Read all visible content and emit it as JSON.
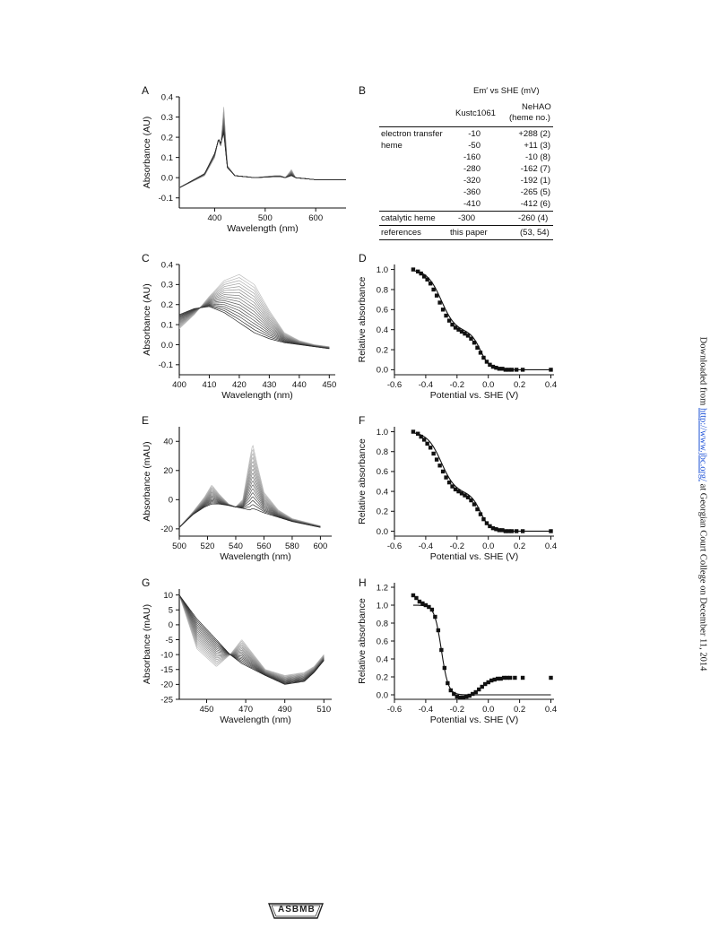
{
  "panels": {
    "A": {
      "letter": "A",
      "xlabel": "Wavelength (nm)",
      "ylabel": "Absorbance (AU)",
      "xticks": [
        "400",
        "500",
        "600"
      ],
      "yticks": [
        "0.4",
        "0.3",
        "0.2",
        "0.1",
        "0.0",
        "-0.1"
      ]
    },
    "C": {
      "letter": "C",
      "xlabel": "Wavelength (nm)",
      "ylabel": "Absorbance (AU)",
      "xticks": [
        "400",
        "410",
        "420",
        "430",
        "440",
        "450"
      ],
      "yticks": [
        "0.4",
        "0.3",
        "0.2",
        "0.1",
        "0.0",
        "-0.1"
      ]
    },
    "D": {
      "letter": "D",
      "xlabel": "Potential vs. SHE (V)",
      "ylabel": "Relative absorbance",
      "xticks": [
        "-0.6",
        "-0.4",
        "-0.2",
        "0.0",
        "0.2",
        "0.4"
      ],
      "yticks": [
        "1.0",
        "0.8",
        "0.6",
        "0.4",
        "0.2",
        "0.0"
      ]
    },
    "E": {
      "letter": "E",
      "xlabel": "Wavelength (nm)",
      "ylabel": "Absorbance (mAU)",
      "xticks": [
        "500",
        "520",
        "540",
        "560",
        "580",
        "600"
      ],
      "yticks": [
        "40",
        "20",
        "0",
        "-20"
      ]
    },
    "F": {
      "letter": "F",
      "xlabel": "Potential vs. SHE (V)",
      "ylabel": "Relative absorbance",
      "xticks": [
        "-0.6",
        "-0.4",
        "-0.2",
        "0.0",
        "0.2",
        "0.4"
      ],
      "yticks": [
        "1.0",
        "0.8",
        "0.6",
        "0.4",
        "0.2",
        "0.0"
      ]
    },
    "G": {
      "letter": "G",
      "xlabel": "Wavelength (nm)",
      "ylabel": "Absorbance (mAU)",
      "xticks": [
        "450",
        "470",
        "490",
        "510"
      ],
      "yticks": [
        "10",
        "5",
        "0",
        "-5",
        "-10",
        "-15",
        "-20",
        "-25"
      ]
    },
    "H": {
      "letter": "H",
      "xlabel": "Potential vs. SHE (V)",
      "ylabel": "Relative absorbance",
      "xticks": [
        "-0.6",
        "-0.4",
        "-0.2",
        "0.0",
        "0.2",
        "0.4"
      ],
      "yticks": [
        "1.2",
        "1.0",
        "0.8",
        "0.6",
        "0.4",
        "0.2",
        "0.0"
      ]
    }
  },
  "table": {
    "letter": "B",
    "header": "Em′ vs SHE (mV)",
    "col1": "Kustc1061",
    "col2_line1": "NeHAO",
    "col2_line2": "(heme no.)",
    "row_et_label1": "electron transfer",
    "row_et_label2": "heme",
    "et_kustc": [
      "-10",
      "-50",
      "-160",
      "-280",
      "-320",
      "-360",
      "-410"
    ],
    "et_nehao": [
      "+288 (2)",
      "+11 (3)",
      "-10 (8)",
      "-162 (7)",
      "-192 (1)",
      "-265 (5)",
      "-412 (6)"
    ],
    "cat_label": "catalytic heme",
    "cat_kustc": "-300",
    "cat_nehao": "-260 (4)",
    "ref_label": "references",
    "ref_kustc": "this paper",
    "ref_nehao": "(53, 54)"
  },
  "sidebar": {
    "prefix": "Downloaded from ",
    "link": "http://www.jbc.org/",
    "suffix": " at Georgian Court College on December 11, 2014"
  },
  "footer": {
    "logo_text": "ASBMB"
  },
  "chart_data": [
    {
      "panel": "A",
      "type": "line",
      "xlabel": "Wavelength (nm)",
      "ylabel": "Absorbance (AU)",
      "xlim": [
        330,
        660
      ],
      "ylim": [
        -0.15,
        0.4
      ],
      "x": [
        330,
        380,
        400,
        408,
        412,
        418,
        425,
        440,
        480,
        520,
        530,
        540,
        552,
        560,
        600,
        660
      ],
      "series": [
        {
          "values": [
            -0.05,
            0.01,
            0.1,
            0.2,
            0.14,
            0.35,
            0.06,
            0.01,
            0.0,
            0.01,
            0.01,
            0.0,
            0.04,
            0.0,
            -0.01,
            -0.01
          ]
        },
        {
          "values": [
            -0.05,
            0.02,
            0.12,
            0.19,
            0.17,
            0.22,
            0.05,
            0.01,
            0.0,
            0.005,
            0.005,
            0.0,
            0.01,
            0.0,
            -0.01,
            -0.01
          ]
        }
      ]
    },
    {
      "panel": "C",
      "type": "line",
      "xlabel": "Wavelength (nm)",
      "ylabel": "Absorbance (AU)",
      "xlim": [
        400,
        452
      ],
      "ylim": [
        -0.15,
        0.4
      ],
      "x": [
        400,
        405,
        410,
        415,
        420,
        425,
        430,
        435,
        440,
        445,
        450
      ],
      "series": [
        {
          "values": [
            0.08,
            0.15,
            0.24,
            0.32,
            0.35,
            0.3,
            0.17,
            0.06,
            0.02,
            0.0,
            -0.01
          ]
        },
        {
          "values": [
            0.15,
            0.18,
            0.19,
            0.16,
            0.11,
            0.06,
            0.03,
            0.01,
            0.0,
            -0.01,
            -0.02
          ]
        }
      ]
    },
    {
      "panel": "D",
      "type": "scatter",
      "xlabel": "Potential vs. SHE (V)",
      "ylabel": "Relative absorbance",
      "xlim": [
        -0.6,
        0.42
      ],
      "ylim": [
        -0.05,
        1.05
      ],
      "x": [
        -0.48,
        -0.45,
        -0.43,
        -0.41,
        -0.39,
        -0.37,
        -0.35,
        -0.33,
        -0.31,
        -0.29,
        -0.27,
        -0.25,
        -0.23,
        -0.21,
        -0.19,
        -0.17,
        -0.15,
        -0.13,
        -0.11,
        -0.09,
        -0.07,
        -0.05,
        -0.03,
        -0.01,
        0.01,
        0.03,
        0.05,
        0.07,
        0.09,
        0.11,
        0.13,
        0.15,
        0.18,
        0.22,
        0.4
      ],
      "values": [
        1.0,
        0.98,
        0.96,
        0.93,
        0.9,
        0.86,
        0.8,
        0.74,
        0.67,
        0.6,
        0.54,
        0.49,
        0.45,
        0.42,
        0.4,
        0.38,
        0.36,
        0.34,
        0.31,
        0.27,
        0.22,
        0.17,
        0.12,
        0.08,
        0.05,
        0.03,
        0.02,
        0.01,
        0.01,
        0.0,
        0.0,
        0.0,
        0.0,
        0.0,
        0.0
      ]
    },
    {
      "panel": "E",
      "type": "line",
      "xlabel": "Wavelength (nm)",
      "ylabel": "Absorbance (mAU)",
      "xlim": [
        500,
        608
      ],
      "ylim": [
        -25,
        50
      ],
      "x": [
        500,
        510,
        518,
        523,
        528,
        535,
        540,
        545,
        550,
        552,
        555,
        560,
        570,
        580,
        600
      ],
      "series": [
        {
          "values": [
            -19,
            -8,
            2,
            10,
            4,
            -3,
            -5,
            0,
            28,
            38,
            25,
            5,
            -7,
            -13,
            -18
          ]
        },
        {
          "values": [
            -19,
            -10,
            -5,
            -3,
            -3,
            -4,
            -5,
            -6,
            -7,
            -6,
            -7,
            -9,
            -12,
            -15,
            -19
          ]
        }
      ]
    },
    {
      "panel": "F",
      "type": "scatter",
      "xlabel": "Potential vs. SHE (V)",
      "ylabel": "Relative absorbance",
      "xlim": [
        -0.6,
        0.42
      ],
      "ylim": [
        -0.05,
        1.05
      ],
      "x": [
        -0.48,
        -0.45,
        -0.43,
        -0.41,
        -0.39,
        -0.37,
        -0.35,
        -0.33,
        -0.31,
        -0.29,
        -0.27,
        -0.25,
        -0.23,
        -0.21,
        -0.19,
        -0.17,
        -0.15,
        -0.13,
        -0.11,
        -0.09,
        -0.07,
        -0.05,
        -0.03,
        -0.01,
        0.01,
        0.03,
        0.05,
        0.07,
        0.09,
        0.11,
        0.13,
        0.15,
        0.18,
        0.22,
        0.4
      ],
      "values": [
        1.0,
        0.98,
        0.95,
        0.92,
        0.88,
        0.84,
        0.78,
        0.72,
        0.66,
        0.6,
        0.54,
        0.49,
        0.45,
        0.42,
        0.4,
        0.38,
        0.36,
        0.34,
        0.31,
        0.27,
        0.22,
        0.17,
        0.12,
        0.08,
        0.05,
        0.03,
        0.02,
        0.01,
        0.01,
        0.0,
        0.0,
        0.0,
        0.0,
        0.0,
        0.0
      ]
    },
    {
      "panel": "G",
      "type": "line",
      "xlabel": "Wavelength (nm)",
      "ylabel": "Absorbance (mAU)",
      "xlim": [
        436,
        514
      ],
      "ylim": [
        -25,
        12
      ],
      "x": [
        436,
        445,
        455,
        462,
        468,
        474,
        480,
        490,
        500,
        505,
        510
      ],
      "series": [
        {
          "values": [
            10,
            -8,
            -14,
            -10,
            -5,
            -10,
            -15,
            -17,
            -16,
            -14,
            -10
          ]
        },
        {
          "values": [
            10,
            2,
            -5,
            -10,
            -13,
            -15,
            -17,
            -20,
            -19,
            -16,
            -12
          ]
        }
      ]
    },
    {
      "panel": "H",
      "type": "scatter",
      "xlabel": "Potential vs. SHE (V)",
      "ylabel": "Relative absorbance",
      "xlim": [
        -0.6,
        0.42
      ],
      "ylim": [
        -0.05,
        1.25
      ],
      "x": [
        -0.48,
        -0.46,
        -0.44,
        -0.42,
        -0.4,
        -0.38,
        -0.36,
        -0.34,
        -0.32,
        -0.3,
        -0.28,
        -0.26,
        -0.24,
        -0.22,
        -0.2,
        -0.18,
        -0.16,
        -0.14,
        -0.12,
        -0.1,
        -0.08,
        -0.06,
        -0.04,
        -0.02,
        0.0,
        0.02,
        0.04,
        0.06,
        0.08,
        0.1,
        0.12,
        0.14,
        0.17,
        0.22,
        0.4
      ],
      "values": [
        1.11,
        1.08,
        1.04,
        1.02,
        1.0,
        0.98,
        0.95,
        0.87,
        0.72,
        0.5,
        0.3,
        0.13,
        0.05,
        0.01,
        -0.02,
        -0.03,
        -0.03,
        -0.02,
        -0.01,
        0.01,
        0.03,
        0.06,
        0.09,
        0.12,
        0.14,
        0.16,
        0.17,
        0.18,
        0.18,
        0.19,
        0.19,
        0.19,
        0.19,
        0.19,
        0.19
      ]
    }
  ]
}
